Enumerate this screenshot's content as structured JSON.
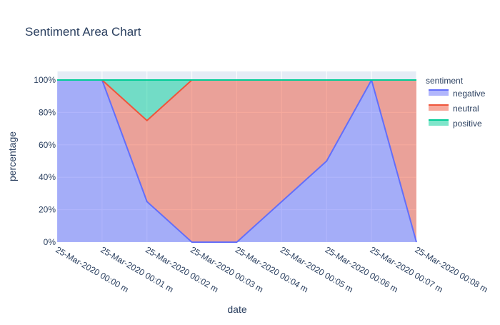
{
  "chart_data": {
    "type": "area",
    "title": "Sentiment Area Chart",
    "xlabel": "date",
    "ylabel": "percentage",
    "x": [
      "25-Mar-2020 00:00 m",
      "25-Mar-2020 00:01 m",
      "25-Mar-2020 00:02 m",
      "25-Mar-2020 00:03 m",
      "25-Mar-2020 00:04 m",
      "25-Mar-2020 00:05 m",
      "25-Mar-2020 00:06 m",
      "25-Mar-2020 00:07 m",
      "25-Mar-2020 00:08 m"
    ],
    "ylim": [
      0,
      100
    ],
    "yticks": [
      "0%",
      "20%",
      "40%",
      "60%",
      "80%",
      "100%"
    ],
    "stacked": true,
    "grid": true,
    "legend_title": "sentiment",
    "legend_position": "top-right",
    "series": [
      {
        "name": "negative",
        "color": "#636efa",
        "values": [
          100,
          100,
          25,
          0,
          0,
          25,
          50,
          100,
          0
        ]
      },
      {
        "name": "neutral",
        "color": "#ef553b",
        "values": [
          0,
          0,
          50,
          100,
          100,
          75,
          50,
          0,
          100
        ]
      },
      {
        "name": "positive",
        "color": "#00cc96",
        "values": [
          0,
          0,
          25,
          0,
          0,
          0,
          0,
          0,
          0
        ]
      }
    ]
  }
}
